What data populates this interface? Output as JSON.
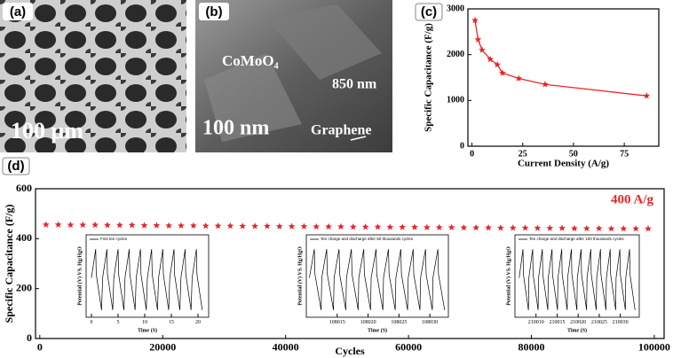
{
  "images": [
    {
      "label": "(a)",
      "scale_text": "100 μm"
    },
    {
      "label": "(b)",
      "material": "CoMoO₄",
      "size": "850 nm",
      "scale_text": "100 nm",
      "substrate": "Graphene"
    }
  ],
  "chart_data": [
    {
      "type": "line",
      "label": "(c)",
      "x_label": "Current Density (A/g)",
      "y_label": "Specific Capacitance (F/g)",
      "x": [
        1.5,
        3,
        5,
        9,
        12.5,
        15,
        23,
        36,
        86
      ],
      "series": [
        {
          "color": "#e8262a",
          "values": [
            2750,
            2330,
            2100,
            1900,
            1780,
            1600,
            1480,
            1350,
            1100
          ]
        }
      ],
      "marker": "star",
      "line": true,
      "xlim": [
        -2,
        92
      ],
      "ylim": [
        0,
        3000
      ],
      "xticks": [
        0,
        25,
        50,
        75
      ],
      "yticks": [
        0,
        1000,
        2000,
        3000
      ]
    },
    {
      "type": "line",
      "label": "(d)",
      "x_label": "Cycles",
      "y_label": "Specific Capacitance (F/g)",
      "annotation": "400 A/g",
      "x": [
        1000,
        3000,
        5000,
        7000,
        9000,
        11000,
        13000,
        15000,
        17000,
        19000,
        21000,
        23000,
        25000,
        27000,
        29000,
        31000,
        33000,
        35000,
        37000,
        39000,
        41000,
        43000,
        45000,
        47000,
        49000,
        51000,
        53000,
        55000,
        57000,
        59000,
        61000,
        63000,
        65000,
        67000,
        69000,
        71000,
        73000,
        75000,
        77000,
        79000,
        81000,
        83000,
        85000,
        87000,
        89000,
        91000,
        93000,
        95000,
        97000,
        99000
      ],
      "series": [
        {
          "color": "#e8262a",
          "values": [
            456,
            456,
            455,
            455,
            455,
            454,
            454,
            454,
            453,
            453,
            452,
            452,
            452,
            451,
            451,
            451,
            450,
            450,
            450,
            449,
            449,
            449,
            448,
            448,
            448,
            447,
            447,
            447,
            446,
            446,
            446,
            445,
            445,
            445,
            444,
            444,
            444,
            443,
            443,
            443,
            442,
            442,
            442,
            441,
            441,
            441,
            440,
            440,
            440,
            440
          ]
        }
      ],
      "marker": "star",
      "line": false,
      "xlim": [
        -700,
        101600
      ],
      "ylim": [
        0,
        600
      ],
      "xticks": [
        0,
        20000,
        40000,
        60000,
        80000,
        100000
      ],
      "yticks": [
        0,
        200,
        400,
        600
      ]
    },
    {
      "type": "line",
      "x_label": "Time (S)",
      "y_label": "Potential (V) VS. Hg/HgO",
      "x": [
        0,
        0.8,
        0.9,
        1.9,
        2.1,
        2.9,
        3,
        4,
        4.2,
        5,
        5.1,
        6.1,
        6.3,
        7.1,
        7.2,
        8.2,
        8.4,
        9.2,
        9.3,
        10.3,
        10.5,
        11.3,
        11.4,
        12.4,
        12.6,
        13.4,
        13.5,
        14.5,
        14.7,
        15.5,
        15.6,
        16.6,
        16.8,
        17.6,
        17.7,
        18.7,
        18.9,
        19.7,
        19.8,
        20.8
      ],
      "series": [
        {
          "name": "First ten cycles",
          "color": "#000000",
          "values": [
            0.55,
            0.95,
            0.6,
            0.1,
            0.55,
            0.95,
            0.6,
            0.1,
            0.55,
            0.95,
            0.6,
            0.1,
            0.55,
            0.95,
            0.6,
            0.1,
            0.55,
            0.95,
            0.6,
            0.1,
            0.55,
            0.95,
            0.6,
            0.1,
            0.55,
            0.95,
            0.6,
            0.1,
            0.55,
            0.95,
            0.6,
            0.1,
            0.55,
            0.95,
            0.6,
            0.1,
            0.55,
            0.95,
            0.6,
            0.1
          ]
        }
      ],
      "line": true,
      "xlim": [
        -1,
        22
      ],
      "ylim": [
        0,
        1.15
      ],
      "xticks": [
        0,
        5,
        10,
        15,
        20
      ]
    },
    {
      "type": "line",
      "x_label": "Time (S)",
      "y_label": "Potential (V) VS. Hg/HgO",
      "x": [
        108010.5,
        108011.3,
        108011.4,
        108012.4,
        108012.5,
        108013.3,
        108013.4,
        108014.4,
        108014.5,
        108015.3,
        108015.4,
        108016.4,
        108016.5,
        108017.3,
        108017.4,
        108018.4,
        108018.5,
        108019.3,
        108019.4,
        108020.4,
        108020.5,
        108021.3,
        108021.4,
        108022.4,
        108022.5,
        108023.3,
        108023.4,
        108024.4,
        108024.5,
        108025.3,
        108025.4,
        108026.4,
        108026.5,
        108027.3,
        108027.4,
        108028.4,
        108028.5,
        108029.3,
        108029.4,
        108030.4,
        108030.5,
        108031.3,
        108031.4,
        108032.4
      ],
      "series": [
        {
          "name": "Ten charge and discharge after 50 thousands cycles",
          "color": "#000000",
          "values": [
            0.55,
            0.95,
            0.6,
            0.1,
            0.55,
            0.95,
            0.6,
            0.1,
            0.55,
            0.95,
            0.6,
            0.1,
            0.55,
            0.95,
            0.6,
            0.1,
            0.55,
            0.95,
            0.6,
            0.1,
            0.55,
            0.95,
            0.6,
            0.1,
            0.55,
            0.95,
            0.6,
            0.1,
            0.55,
            0.95,
            0.6,
            0.1,
            0.55,
            0.95,
            0.6,
            0.1,
            0.55,
            0.95,
            0.6,
            0.1,
            0.55,
            0.95,
            0.6,
            0.1
          ]
        }
      ],
      "line": true,
      "xlim": [
        108010,
        108033
      ],
      "ylim": [
        0,
        1.15
      ],
      "xticks": [
        108015,
        108020,
        108025,
        108030
      ]
    },
    {
      "type": "line",
      "x_label": "Time (S)",
      "y_label": "Potential (V) VS. Hg/HgO",
      "x": [
        210006,
        210006.9,
        210007,
        210008.2,
        210008.3,
        210009.2,
        210009.3,
        210010.5,
        210010.6,
        210011.5,
        210011.6,
        210012.8,
        210012.9,
        210013.8,
        210013.9,
        210015.1,
        210015.2,
        210016.1,
        210016.2,
        210017.4,
        210017.5,
        210018.4,
        210018.5,
        210019.7,
        210019.8,
        210020.7,
        210020.8,
        210022,
        210022.1,
        210023,
        210023.1,
        210024.3,
        210024.4,
        210025.3,
        210025.4,
        210026.6,
        210026.7,
        210027.6,
        210027.7,
        210028.9,
        210029,
        210029.9,
        210030,
        210031.2,
        210031.3,
        210032.2,
        210032.3,
        210033.5
      ],
      "series": [
        {
          "name": "Ten charge and discharge after 100 thousands cycles",
          "color": "#000000",
          "values": [
            0.55,
            0.95,
            0.6,
            0.1,
            0.55,
            0.95,
            0.6,
            0.1,
            0.55,
            0.95,
            0.6,
            0.1,
            0.55,
            0.95,
            0.6,
            0.1,
            0.55,
            0.95,
            0.6,
            0.1,
            0.55,
            0.95,
            0.6,
            0.1,
            0.55,
            0.95,
            0.6,
            0.1,
            0.55,
            0.95,
            0.6,
            0.1,
            0.55,
            0.95,
            0.6,
            0.1,
            0.55,
            0.95,
            0.6,
            0.1,
            0.55,
            0.95,
            0.6,
            0.1,
            0.55,
            0.95,
            0.6,
            0.1
          ]
        }
      ],
      "line": true,
      "xlim": [
        210005,
        210034.5
      ],
      "ylim": [
        0,
        1.15
      ],
      "xticks": [
        210010,
        210015,
        210020,
        210025,
        210030
      ]
    }
  ]
}
